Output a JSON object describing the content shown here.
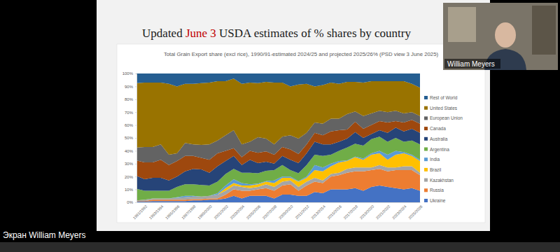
{
  "page": {
    "slide_title": {
      "before": "Updated ",
      "highlight": "June 3",
      "after": " USDA estimates of % shares by country"
    },
    "speaker_name": "William Meyers",
    "screen_label": "Экран William Meyers"
  },
  "chart_data": {
    "type": "area",
    "stacked": true,
    "grid": false,
    "legend": "right",
    "title": "Total Grain Export share (excl rice), 1990/91-estimated 2024/25 and projected 2025/26% (PSD view 3 June 2025)",
    "categories": [
      null,
      "1991/1992",
      null,
      "1993/1994",
      null,
      "1995/1996",
      null,
      "1997/1998",
      null,
      "1999/2000",
      null,
      "2001/2002",
      null,
      "2003/2004",
      null,
      "2005/2006",
      null,
      "2007/2008",
      null,
      "2009/2010",
      null,
      "2011/2012",
      null,
      "2013/2014",
      null,
      "2015/2016",
      null,
      "2017/2018",
      null,
      "2019/2020",
      null,
      "2021/2022",
      null,
      "2023/2024",
      null,
      "2025/2026"
    ],
    "ylim": [
      0,
      100
    ],
    "yticks": [
      {
        "value": 0,
        "label": "0%"
      },
      {
        "value": 10,
        "label": "10%"
      },
      {
        "value": 20,
        "label": "20%"
      },
      {
        "value": 30,
        "label": "30%"
      },
      {
        "value": 40,
        "label": "40%"
      },
      {
        "value": 50,
        "label": "50%"
      },
      {
        "value": 60,
        "label": "60%"
      },
      {
        "value": 70,
        "label": "70%"
      },
      {
        "value": 80,
        "label": "80%"
      },
      {
        "value": 90,
        "label": "90%"
      },
      {
        "value": 100,
        "label": "100%"
      }
    ],
    "series": [
      {
        "name": "Ukraine",
        "color": "#4472c4",
        "values": [
          0.5,
          0.5,
          1,
          1,
          1,
          1,
          1,
          1.5,
          1.5,
          2,
          2,
          3,
          5,
          3,
          5,
          5,
          5,
          3,
          6,
          6,
          5,
          5,
          8,
          7,
          10,
          10,
          10,
          11,
          9,
          12,
          13,
          12,
          11,
          10,
          11,
          9
        ]
      },
      {
        "name": "Russia",
        "color": "#ed7d31",
        "values": [
          0.5,
          0.5,
          1,
          1,
          1,
          1,
          1,
          1,
          1,
          1,
          1,
          3,
          5,
          6,
          4,
          5,
          6,
          6,
          7,
          8,
          4,
          8,
          8,
          8,
          10,
          11,
          13,
          13,
          15,
          13,
          13,
          12,
          14,
          15,
          14,
          12
        ]
      },
      {
        "name": "Kazakhstan",
        "color": "#a5a5a5",
        "values": [
          0.5,
          1,
          1,
          1,
          1,
          1.5,
          2,
          2,
          2,
          2,
          3,
          3,
          3,
          3,
          2,
          2,
          3,
          3,
          3,
          3,
          3,
          3,
          3,
          2,
          2,
          2,
          3,
          3,
          3,
          2,
          3,
          3,
          2,
          3,
          3,
          2
        ]
      },
      {
        "name": "Brazil",
        "color": "#ffc000",
        "values": [
          0,
          0,
          0,
          0,
          0,
          0,
          0,
          0,
          0,
          0,
          0,
          2,
          2,
          1,
          2,
          2,
          2,
          3,
          3,
          2,
          4,
          3,
          6,
          7,
          6,
          8,
          6,
          8,
          6,
          10,
          9,
          6,
          10,
          10,
          8,
          9
        ]
      },
      {
        "name": "India",
        "color": "#5b9bd5",
        "values": [
          0,
          0,
          0,
          0,
          0,
          0.5,
          1,
          0.5,
          0,
          0,
          1,
          2,
          3,
          2,
          1,
          0.5,
          0.5,
          2,
          1,
          1,
          0.5,
          1,
          4,
          3,
          2,
          1,
          0.5,
          0.5,
          1,
          1,
          2,
          4,
          3,
          1,
          1,
          1
        ]
      },
      {
        "name": "Argentina",
        "color": "#70ad47",
        "values": [
          9,
          7,
          6,
          6,
          6,
          8,
          9,
          9,
          9,
          8,
          9,
          9,
          8,
          8,
          9,
          8,
          8,
          8,
          9,
          5,
          6,
          9,
          8,
          9,
          7,
          8,
          10,
          10,
          10,
          11,
          11,
          10,
          10,
          8,
          11,
          12
        ]
      },
      {
        "name": "Australia",
        "color": "#264478",
        "values": [
          10,
          9,
          10,
          10,
          8,
          8,
          10,
          12,
          12,
          10,
          12,
          10,
          10,
          6,
          10,
          8,
          7,
          5,
          7,
          8,
          8,
          9,
          10,
          9,
          8,
          7,
          7,
          9,
          6,
          4,
          5,
          7,
          8,
          8,
          9,
          9
        ]
      },
      {
        "name": "Canada",
        "color": "#9e480e",
        "values": [
          12,
          13,
          12,
          14,
          12,
          12,
          12,
          10,
          9,
          10,
          10,
          8,
          6,
          6,
          7,
          8,
          8,
          7,
          7,
          8,
          7,
          7,
          7,
          7,
          10,
          9,
          7,
          8,
          7,
          7,
          7,
          8,
          5,
          7,
          7,
          7
        ]
      },
      {
        "name": "European Union",
        "color": "#636363",
        "values": [
          10,
          12,
          12,
          12,
          8,
          6,
          10,
          9,
          10,
          12,
          10,
          12,
          14,
          10,
          7,
          12,
          10,
          8,
          8,
          11,
          12,
          9,
          8,
          9,
          10,
          9,
          12,
          8,
          10,
          9,
          8,
          8,
          8,
          7,
          6,
          6
        ]
      },
      {
        "name": "United States",
        "color": "#997300",
        "values": [
          50,
          50,
          50,
          48,
          55,
          52,
          46,
          47,
          48,
          48,
          46,
          42,
          40,
          47,
          46,
          42,
          44,
          48,
          42,
          38,
          42,
          38,
          28,
          30,
          28,
          27,
          25,
          23,
          26,
          25,
          23,
          24,
          23,
          25,
          22,
          22
        ]
      },
      {
        "name": "Rest of World",
        "color": "#255e91",
        "values": [
          7.5,
          7,
          7,
          7,
          8,
          10,
          8,
          8,
          7.5,
          7,
          6,
          6,
          4,
          8,
          7,
          7.5,
          6.5,
          7,
          7,
          10,
          8.5,
          8,
          10,
          9,
          7,
          8,
          6.5,
          6.5,
          7,
          6,
          6,
          6,
          6,
          6,
          8,
          11
        ]
      }
    ]
  }
}
